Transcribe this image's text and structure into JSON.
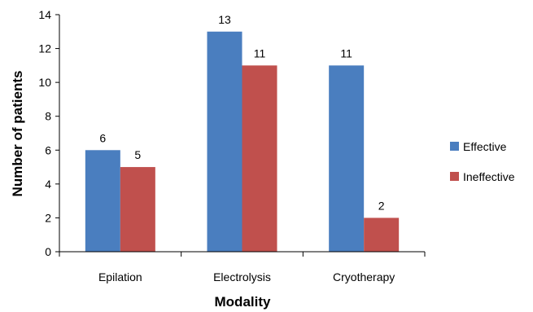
{
  "chart_data": {
    "type": "bar",
    "categories": [
      "Epilation",
      "Electrolysis",
      "Cryotherapy"
    ],
    "series": [
      {
        "name": "Effective",
        "values": [
          6,
          13,
          11
        ],
        "color": "#4a7ebf"
      },
      {
        "name": "Ineffective",
        "values": [
          5,
          11,
          2
        ],
        "color": "#c0504d"
      }
    ],
    "xlabel": "Modality",
    "ylabel": "Number of patients",
    "ylim": [
      0,
      14
    ],
    "yticks": [
      0,
      2,
      4,
      6,
      8,
      10,
      12,
      14
    ],
    "grid": false,
    "legend_position": "right"
  }
}
